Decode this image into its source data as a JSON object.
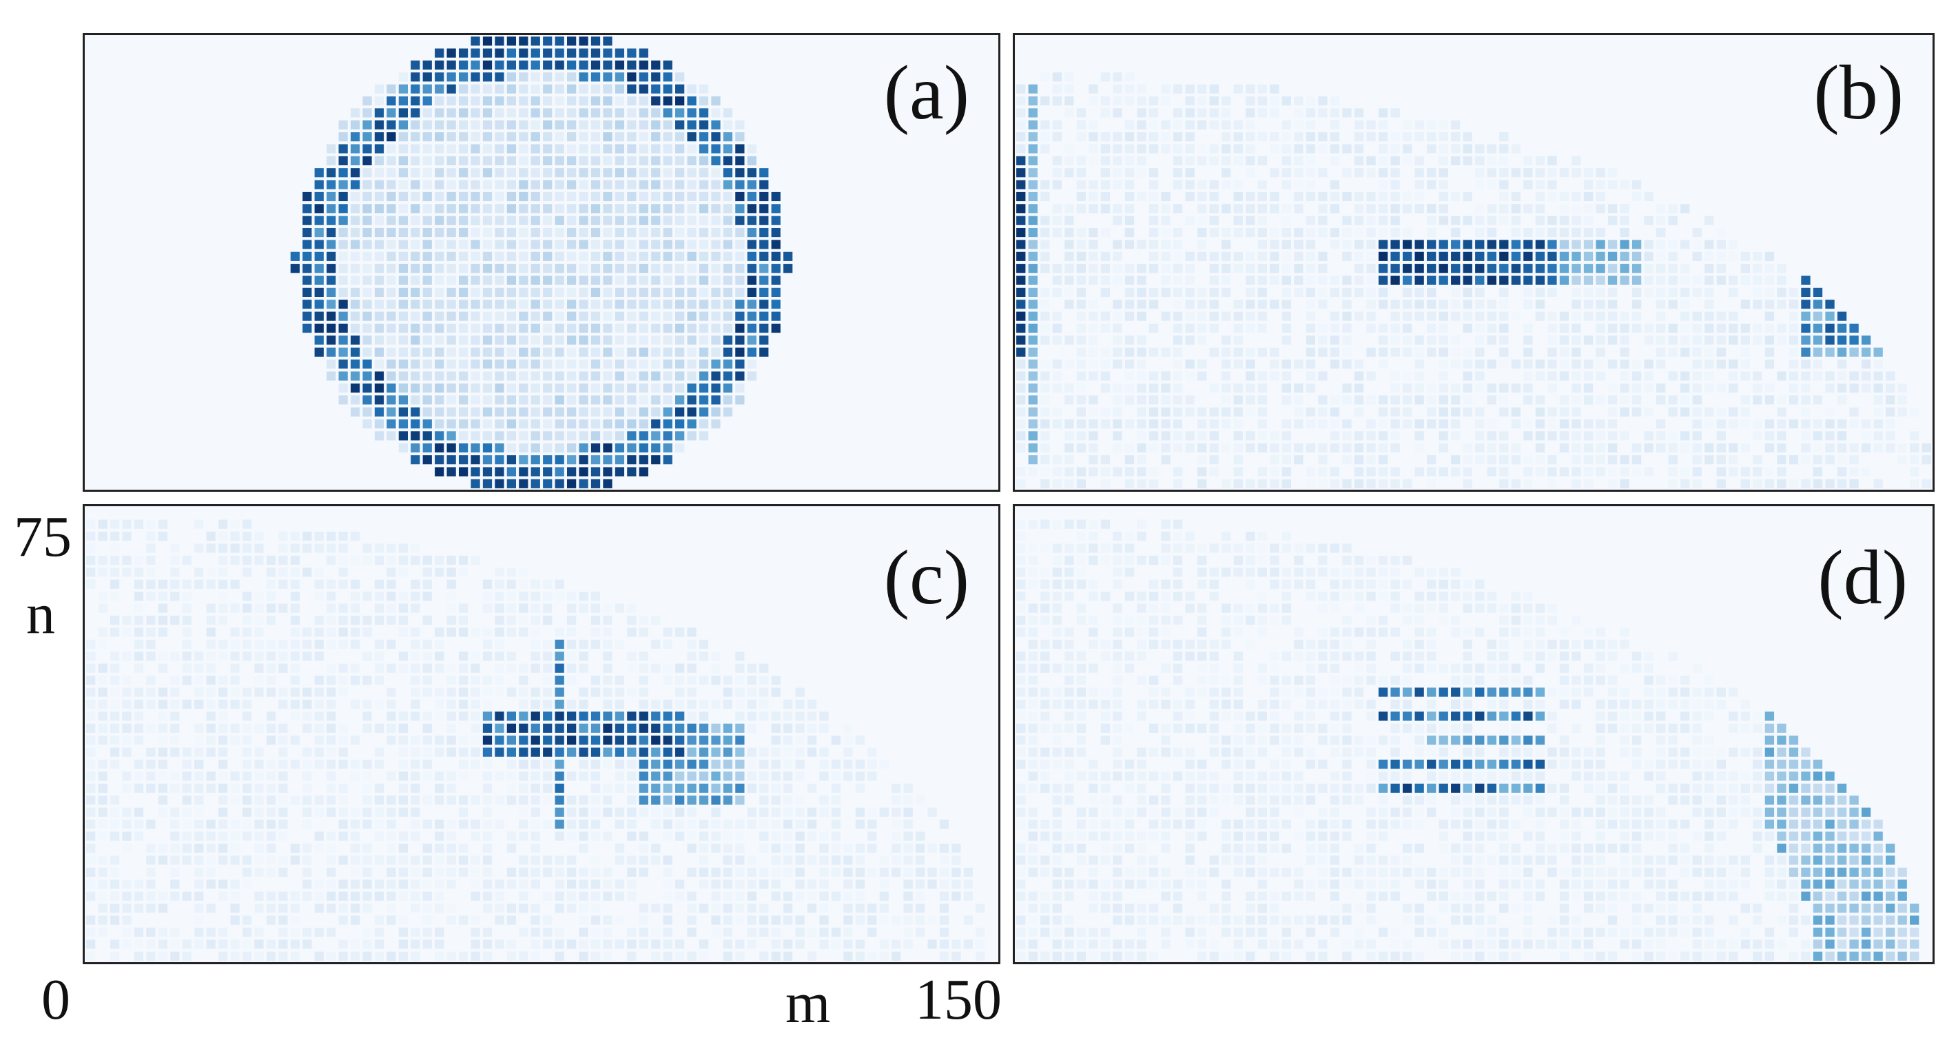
{
  "figure": {
    "panels": [
      {
        "id": "a",
        "label": "(a)"
      },
      {
        "id": "b",
        "label": "(b)"
      },
      {
        "id": "c",
        "label": "(c)"
      },
      {
        "id": "d",
        "label": "(d)"
      }
    ],
    "axis": {
      "xlabel": "m",
      "ylabel": "n",
      "x_tick_min": "0",
      "x_tick_max": "150",
      "y_tick_max": "75"
    }
  },
  "chart_data": [
    {
      "type": "heatmap",
      "panel": "(a)",
      "x_range": [
        0,
        150
      ],
      "y_range": [
        0,
        75
      ],
      "colormap": [
        "#f7fbff",
        "#c6dbef",
        "#6baed6",
        "#2171b5",
        "#08306b"
      ],
      "pattern": "filled disk of cells with high-intensity ring at its boundary; brightest at top and bottom edges"
    },
    {
      "type": "heatmap",
      "panel": "(b)",
      "x_range": [
        0,
        150
      ],
      "y_range": [
        0,
        75
      ],
      "colormap": [
        "#f7fbff",
        "#c6dbef",
        "#6baed6",
        "#2171b5",
        "#08306b"
      ],
      "pattern": "strong left edge column, horizontal high-intensity band near center, cluster at right arc"
    },
    {
      "type": "heatmap",
      "panel": "(c)",
      "x_range": [
        0,
        150
      ],
      "y_range": [
        0,
        75
      ],
      "colormap": [
        "#f7fbff",
        "#c6dbef",
        "#6baed6",
        "#2171b5",
        "#08306b"
      ],
      "pattern": "diffuse background with central horizontal band and a vertical streak"
    },
    {
      "type": "heatmap",
      "panel": "(d)",
      "x_range": [
        0,
        150
      ],
      "y_range": [
        0,
        75
      ],
      "colormap": [
        "#f7fbff",
        "#c6dbef",
        "#6baed6",
        "#2171b5",
        "#08306b"
      ],
      "pattern": "diffuse background with several short horizontal bands at center and faint right arc"
    }
  ]
}
